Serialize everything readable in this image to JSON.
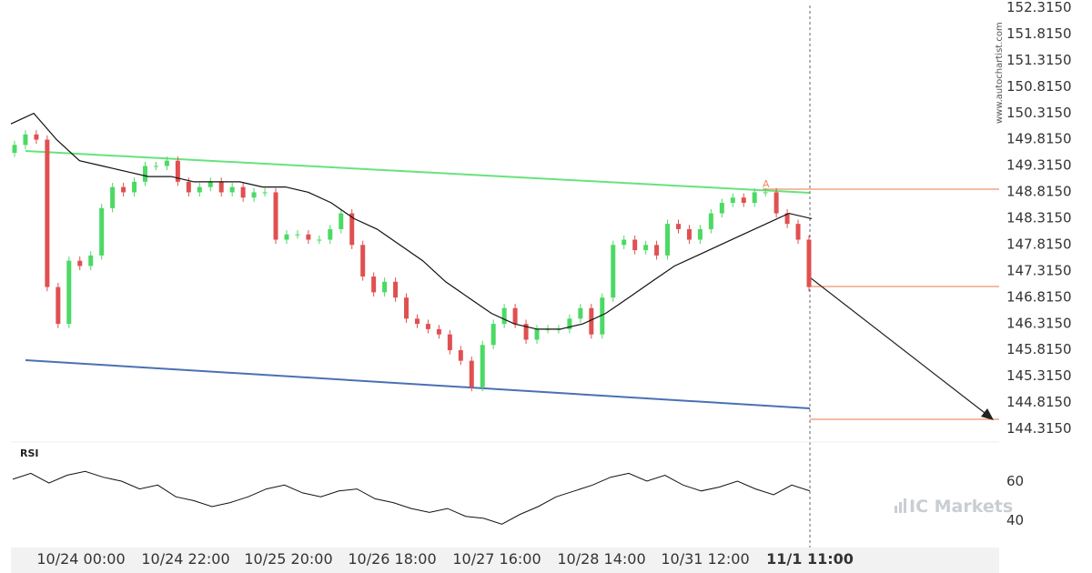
{
  "chart_data": {
    "type": "candlestick",
    "price_axis": {
      "min": 144.315,
      "max": 152.315,
      "ticks": [
        "152.3150",
        "151.8150",
        "151.3150",
        "150.8150",
        "150.3150",
        "149.8150",
        "149.3150",
        "148.8150",
        "148.3150",
        "147.8150",
        "147.3150",
        "146.8150",
        "146.3150",
        "145.8150",
        "145.3150",
        "144.8150",
        "144.3150"
      ]
    },
    "rsi_panel": {
      "label": "RSI",
      "ticks": [
        "60",
        "40"
      ]
    },
    "x_ticks": [
      "10/24 00:00",
      "10/24 22:00",
      "10/25 20:00",
      "10/26 18:00",
      "10/27 16:00",
      "10/28 14:00",
      "10/31 12:00",
      "11/1 11:00"
    ],
    "highlighted_x_tick": "11/1 11:00",
    "pattern": {
      "upper_line": {
        "start": 149.63,
        "end": 148.79
      },
      "lower_line": {
        "start": 145.63,
        "end": 144.75
      },
      "breakout_marker": "A",
      "breakout_level": 148.84,
      "last_price_level": 147.0,
      "target_level": 144.45
    },
    "close": [
      149.7,
      149.9,
      149.8,
      147.0,
      146.3,
      147.5,
      147.4,
      147.6,
      148.5,
      148.9,
      148.8,
      149.0,
      149.3,
      149.3,
      149.4,
      149.0,
      148.8,
      148.9,
      149.0,
      148.8,
      148.9,
      148.7,
      148.8,
      148.8,
      147.9,
      148.0,
      148.0,
      147.9,
      147.9,
      148.1,
      148.4,
      147.8,
      147.2,
      146.9,
      147.1,
      146.8,
      146.4,
      146.3,
      146.2,
      146.1,
      145.8,
      145.6,
      145.1,
      145.9,
      146.3,
      146.6,
      146.3,
      146.0,
      146.2,
      146.2,
      146.2,
      146.4,
      146.6,
      146.1,
      146.8,
      147.8,
      147.9,
      147.7,
      147.8,
      147.6,
      148.2,
      148.1,
      147.9,
      148.1,
      148.4,
      148.6,
      148.7,
      148.6,
      148.8,
      148.8,
      148.4,
      148.2,
      147.9,
      147.0
    ],
    "ma": [
      150.1,
      150.3,
      149.8,
      149.4,
      149.3,
      149.2,
      149.1,
      149.1,
      149.0,
      149.0,
      149.0,
      148.9,
      148.9,
      148.8,
      148.6,
      148.3,
      148.1,
      147.8,
      147.5,
      147.1,
      146.8,
      146.5,
      146.3,
      146.2,
      146.2,
      146.3,
      146.5,
      146.8,
      147.1,
      147.4,
      147.6,
      147.8,
      148.0,
      148.2,
      148.4,
      148.3
    ],
    "rsi": [
      61,
      64,
      59,
      63,
      65,
      62,
      60,
      56,
      58,
      52,
      50,
      47,
      49,
      52,
      56,
      58,
      54,
      52,
      55,
      56,
      51,
      49,
      46,
      44,
      46,
      42,
      41,
      38,
      43,
      47,
      52,
      55,
      58,
      62,
      64,
      60,
      63,
      58,
      55,
      57,
      60,
      56,
      53,
      58,
      55
    ]
  },
  "watermark": "www.autochartist.com",
  "brand": "IC Markets",
  "colors": {
    "up_candle": "#4cd964",
    "down_candle": "#e05050",
    "upper_trendline": "#66e37d",
    "lower_trendline": "#4a70b5",
    "level_line": "#e8794a",
    "ma_line": "#111111",
    "rsi_line": "#111111",
    "axis_text": "#333333",
    "grid": "#dddddd"
  }
}
